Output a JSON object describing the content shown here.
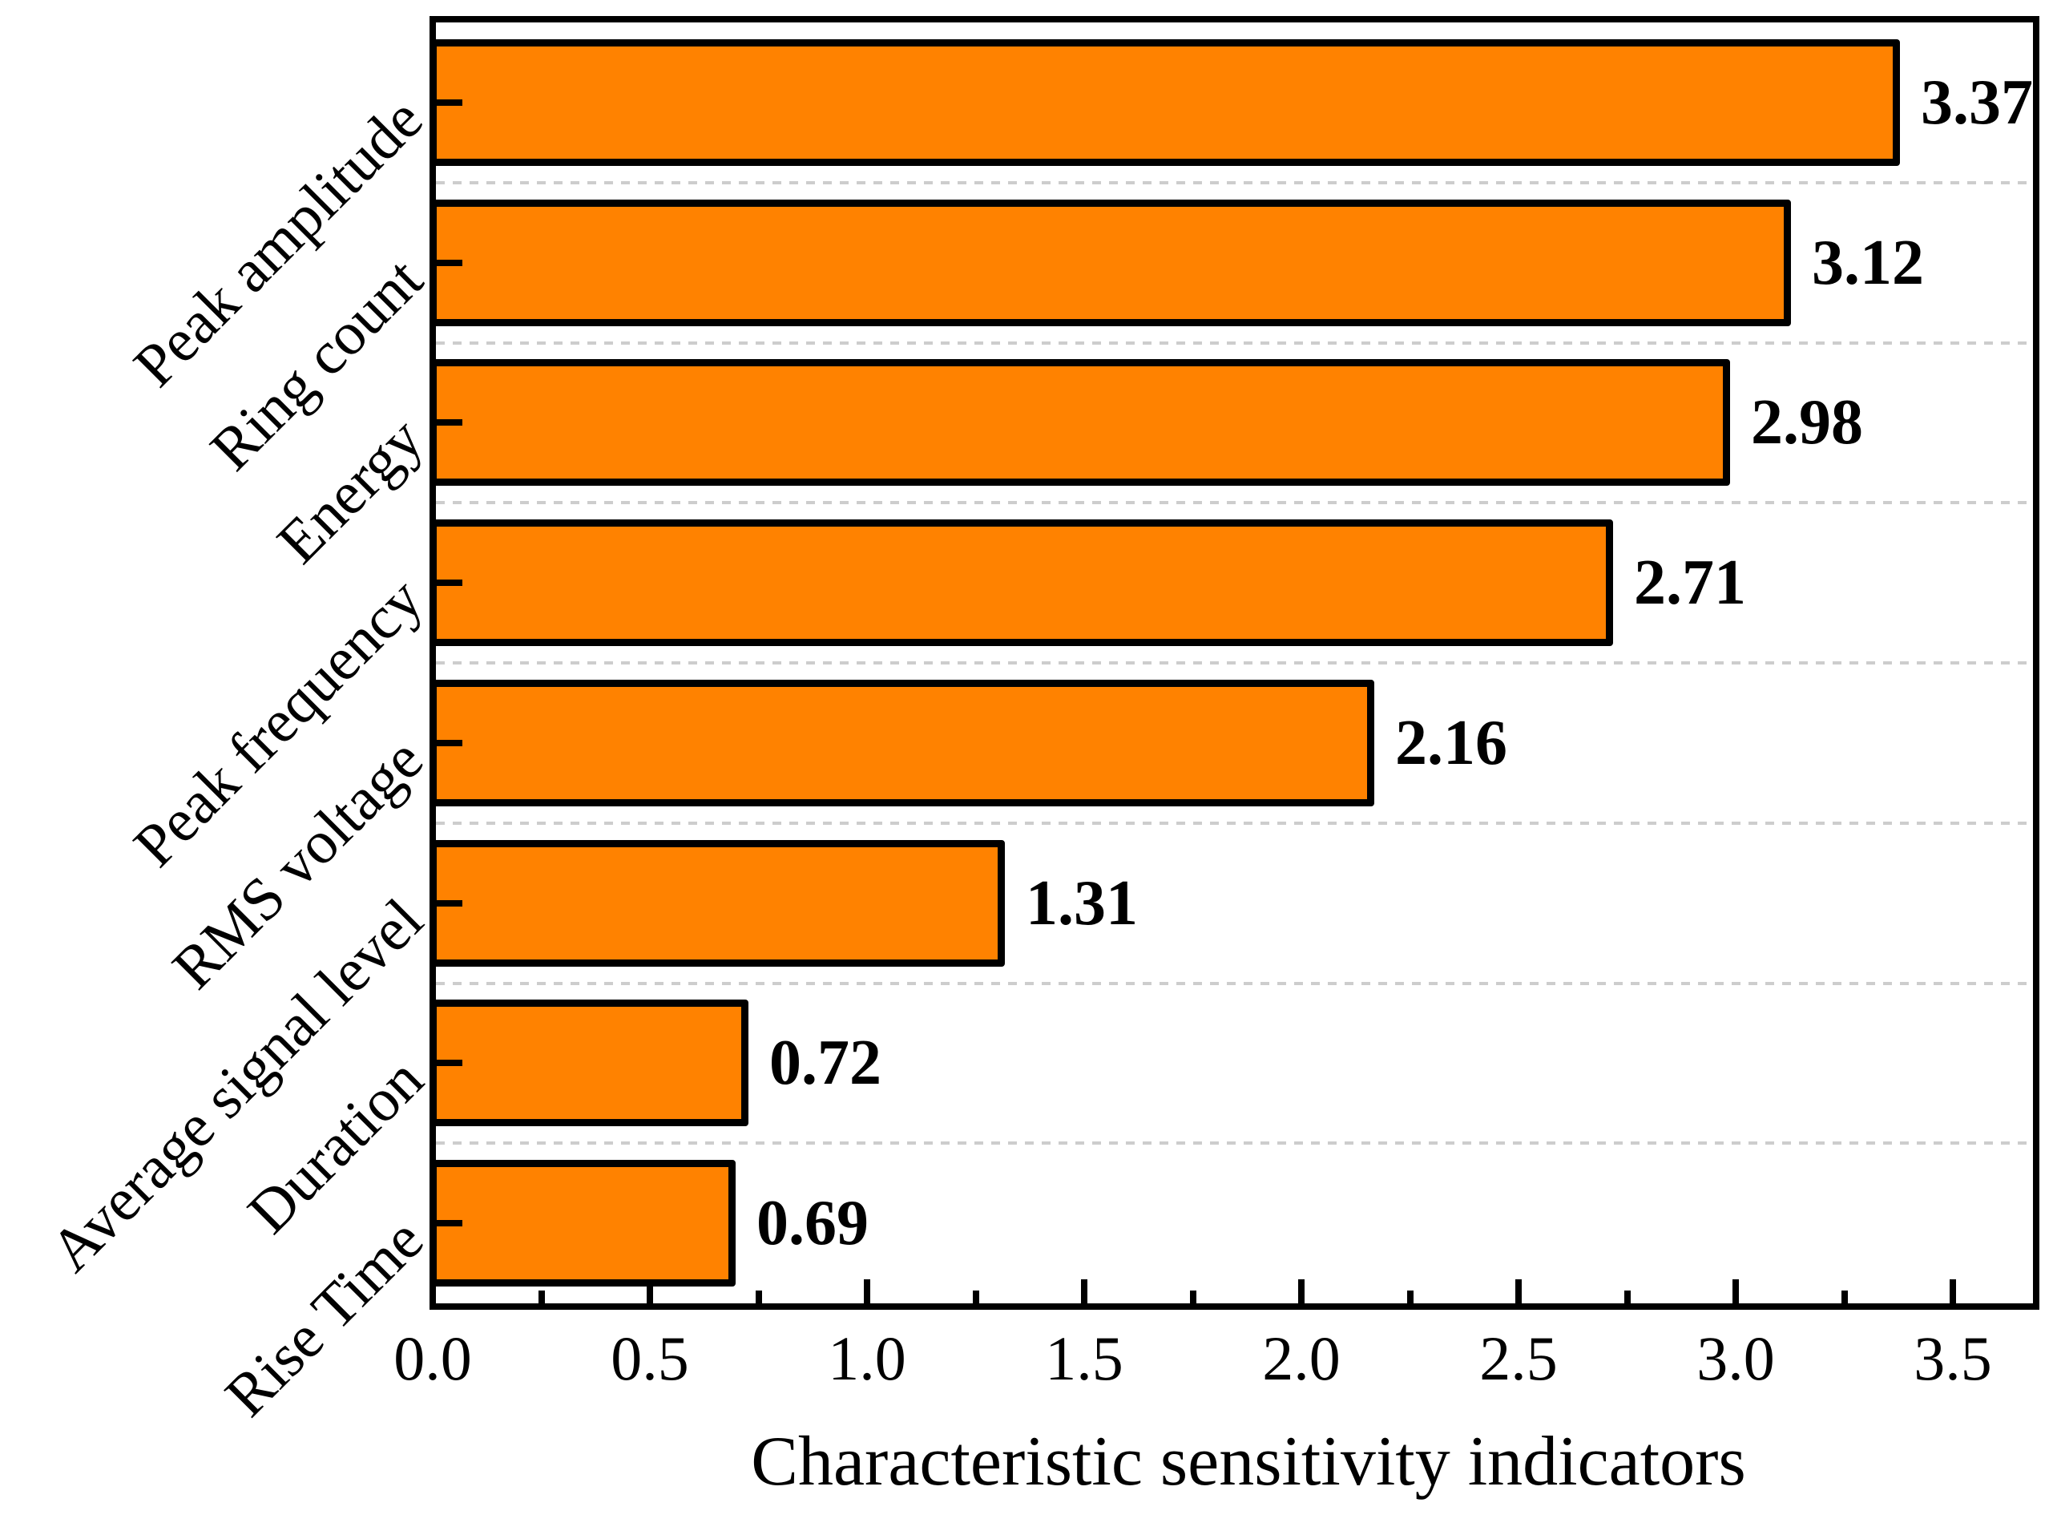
{
  "chart_data": {
    "type": "bar",
    "orientation": "horizontal",
    "title": "",
    "xlabel": "Characteristic sensitivity indicators",
    "ylabel": "",
    "categories": [
      "Peak amplitude",
      "Ring count",
      "Energy",
      "Peak frequency",
      "RMS voltage",
      "Average signal level",
      "Duration",
      "Rise Time"
    ],
    "values": [
      3.37,
      3.12,
      2.98,
      2.71,
      2.16,
      1.31,
      0.72,
      0.69
    ],
    "value_labels": [
      "3.37",
      "3.12",
      "2.98",
      "2.71",
      "2.16",
      "1.31",
      "0.72",
      "0.69"
    ],
    "xlim": [
      0,
      3.69
    ],
    "x_major_ticks": [
      0.0,
      0.5,
      1.0,
      1.5,
      2.0,
      2.5,
      3.0,
      3.5
    ],
    "x_tick_labels": [
      "0.0",
      "0.5",
      "1.0",
      "1.5",
      "2.0",
      "2.5",
      "3.0",
      "3.5"
    ],
    "x_minor_ticks": [
      0.25,
      0.75,
      1.25,
      1.75,
      2.25,
      2.75,
      3.25
    ],
    "grid": "dashed horizontal lines at category boundaries",
    "legend": "none",
    "colors": {
      "bar_fill": "#FF8200",
      "bar_border": "#000000",
      "gridline": "#CDCDCD",
      "axis": "#000000",
      "text": "#000000",
      "background": "#FFFFFF"
    }
  }
}
